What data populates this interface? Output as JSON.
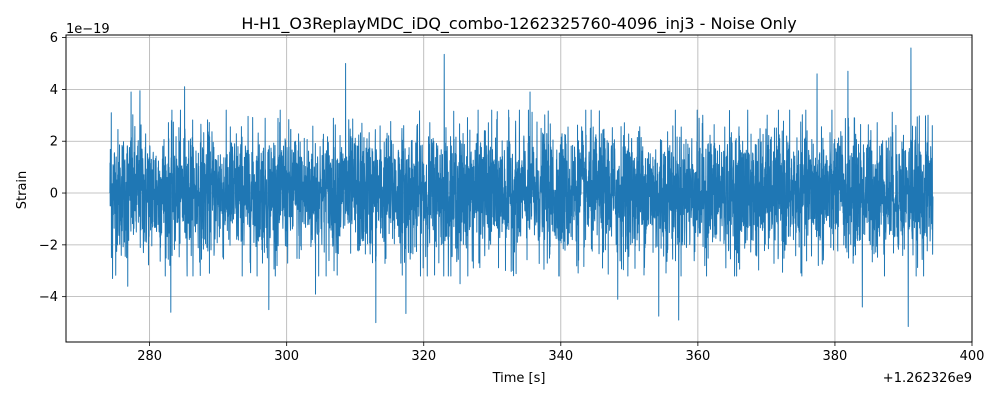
{
  "chart_data": {
    "type": "line",
    "title": "H-H1_O3ReplayMDC_iDQ_combo-1262325760-4096_inj3 - Noise Only",
    "xlabel": "Time [s]",
    "ylabel": "Strain",
    "x_offset_label": "+1.262326e9",
    "y_scale_label": "1e−19",
    "xlim": [
      267.8,
      400.0
    ],
    "ylim": [
      -5.75,
      6.1
    ],
    "xticks": [
      280,
      300,
      320,
      340,
      360,
      380,
      400
    ],
    "yticks": [
      -4,
      -2,
      0,
      2,
      4,
      6
    ],
    "grid": true,
    "series": [
      {
        "color": "#1f77b4",
        "x_range": [
          274.2,
          394.3
        ],
        "samples": [
          {
            "x": 274.2,
            "y": 0.0
          },
          {
            "x": 274.4,
            "y": 3.1
          },
          {
            "x": 274.6,
            "y": -3.3
          },
          {
            "x": 276.8,
            "y": -3.6
          },
          {
            "x": 277.3,
            "y": 3.9
          },
          {
            "x": 278.6,
            "y": 3.95
          },
          {
            "x": 283.1,
            "y": -4.6
          },
          {
            "x": 285.1,
            "y": 4.1
          },
          {
            "x": 297.4,
            "y": -4.5
          },
          {
            "x": 304.2,
            "y": -3.9
          },
          {
            "x": 308.6,
            "y": 5.0
          },
          {
            "x": 313.0,
            "y": -5.0
          },
          {
            "x": 317.4,
            "y": -4.65
          },
          {
            "x": 323.0,
            "y": 5.35
          },
          {
            "x": 325.3,
            "y": -3.5
          },
          {
            "x": 335.5,
            "y": 3.9
          },
          {
            "x": 348.3,
            "y": -4.1
          },
          {
            "x": 354.3,
            "y": -4.75
          },
          {
            "x": 357.2,
            "y": -4.9
          },
          {
            "x": 377.4,
            "y": 4.6
          },
          {
            "x": 381.9,
            "y": 4.7
          },
          {
            "x": 384.0,
            "y": -4.4
          },
          {
            "x": 390.7,
            "y": -5.15
          },
          {
            "x": 391.1,
            "y": 5.6
          },
          {
            "x": 394.2,
            "y": 2.6
          }
        ],
        "typical_envelope": [
          -2.2,
          2.2
        ]
      }
    ]
  }
}
